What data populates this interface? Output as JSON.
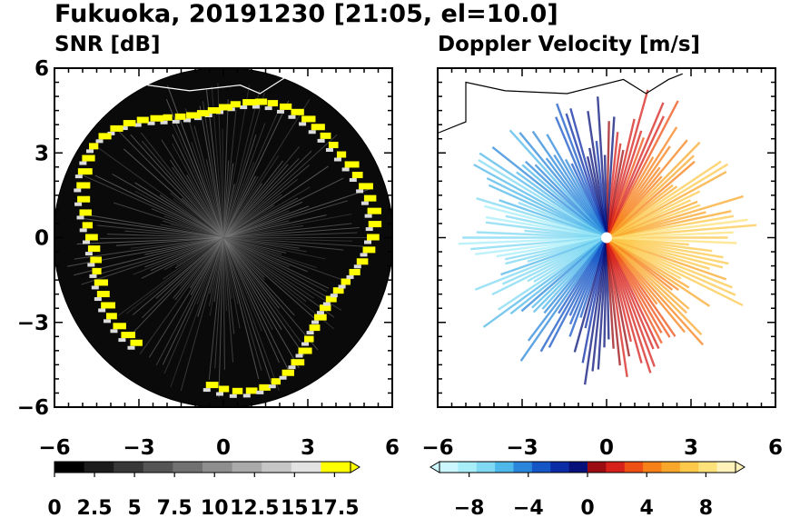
{
  "title": "Fukuoka, 20191230 [21:05, el=10.0]",
  "chart_data": [
    {
      "type": "heatmap",
      "title": "SNR [dB]",
      "xlim": [
        -6,
        6
      ],
      "ylim": [
        -6,
        6
      ],
      "xticks": [
        "−6",
        "−3",
        "0",
        "3",
        "6"
      ],
      "yticks": [
        "6",
        "3",
        "0",
        "−3",
        "−6"
      ],
      "grid": false,
      "colorbar": {
        "min": 0,
        "max": 18.5,
        "extend": "max",
        "labels": [
          "0",
          "2.5",
          "5",
          "7.5",
          "10",
          "12.5",
          "15",
          "17.5"
        ],
        "colors": [
          "#000000",
          "#1c1c1c",
          "#383838",
          "#555555",
          "#717171",
          "#8e8e8e",
          "#aaaaaa",
          "#c6c6c6",
          "#e3e3e3",
          "#ffff00"
        ]
      }
    },
    {
      "type": "heatmap",
      "title": "Doppler Velocity [m/s]",
      "xlim": [
        -6,
        6
      ],
      "ylim": [
        -6,
        6
      ],
      "xticks": [
        "−6",
        "−3",
        "0",
        "3",
        "6"
      ],
      "yticks": [],
      "grid": false,
      "colorbar": {
        "min": -10,
        "max": 10,
        "extend": "both",
        "labels": [
          "−8",
          "−4",
          "0",
          "4",
          "8"
        ],
        "colors": [
          "#cdf7ff",
          "#a8eef9",
          "#7fd9f2",
          "#4fb8ea",
          "#2a86da",
          "#1556c6",
          "#0b2ca6",
          "#06117a",
          "#9b0d12",
          "#d6201a",
          "#ee4f14",
          "#f78019",
          "#f9a72b",
          "#fcc94a",
          "#fde27c",
          "#fff3b9"
        ]
      }
    }
  ]
}
